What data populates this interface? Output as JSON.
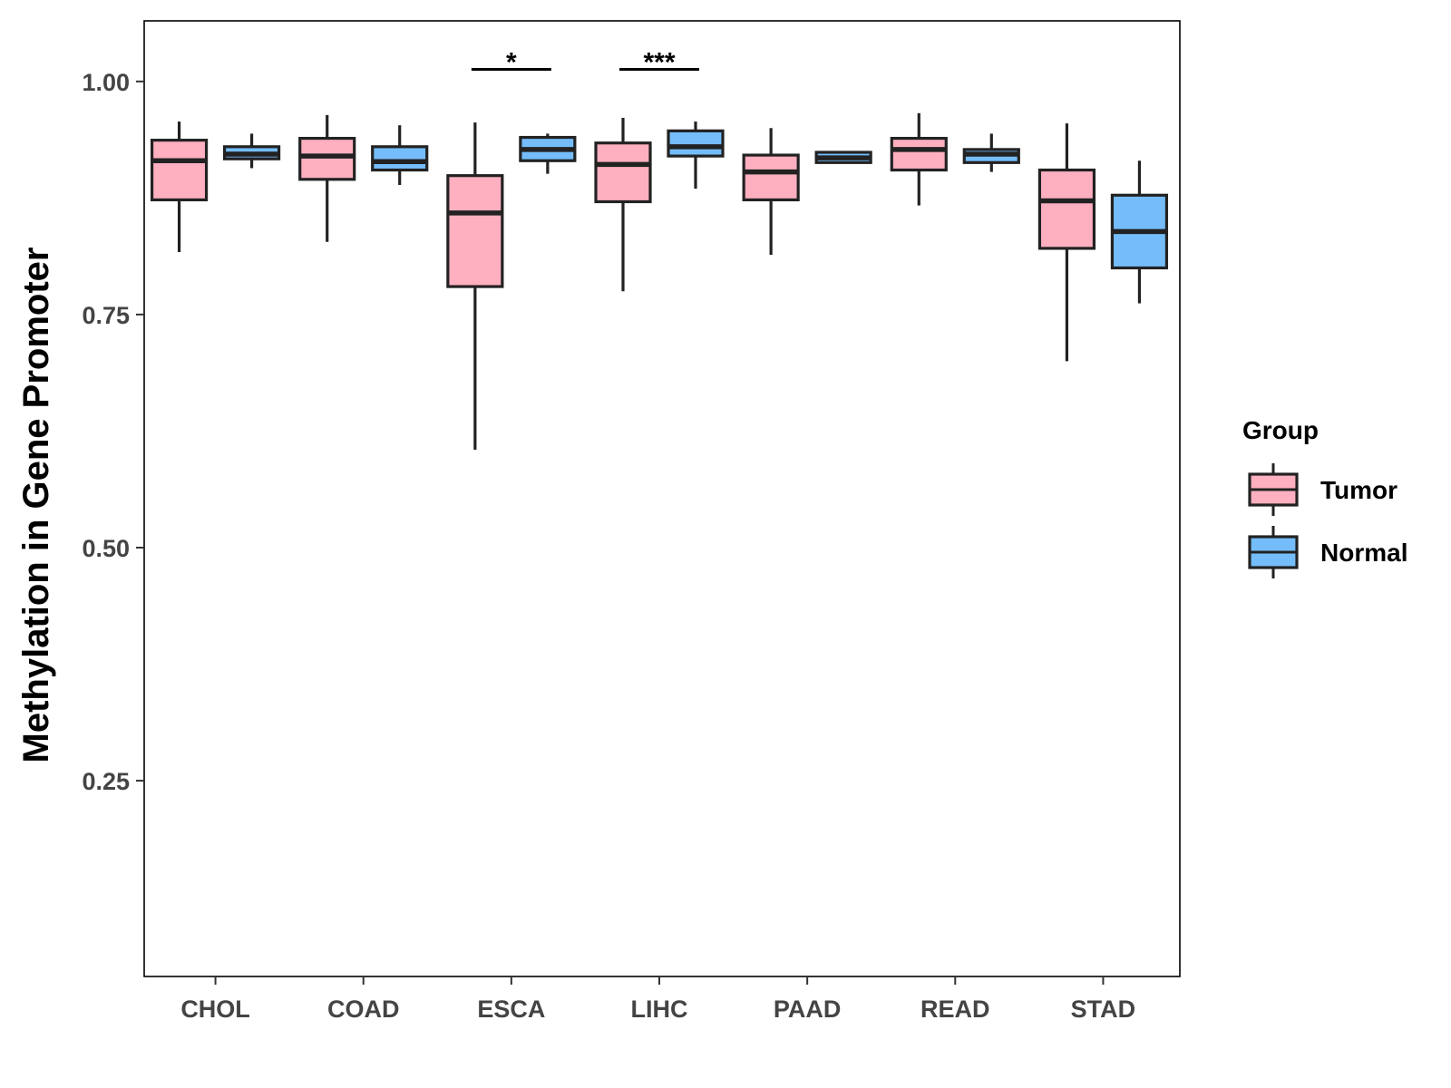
{
  "chart_data": {
    "type": "boxplot",
    "title": "",
    "xlabel": "",
    "ylabel": "Methylation in Gene Promoter",
    "ylim": [
      0.04,
      1.065
    ],
    "yticks": [
      0.25,
      0.5,
      0.75,
      1.0
    ],
    "ytick_labels": [
      "0.25",
      "0.50",
      "0.75",
      "1.00"
    ],
    "categories": [
      "CHOL",
      "COAD",
      "ESCA",
      "LIHC",
      "PAAD",
      "READ",
      "STAD"
    ],
    "legend": {
      "title": "Group",
      "position": "right",
      "entries": [
        {
          "name": "Tumor",
          "color": "#ffb0c0"
        },
        {
          "name": "Normal",
          "color": "#74bdfa"
        }
      ]
    },
    "series": [
      {
        "name": "Tumor",
        "color": "#ffb0c0",
        "boxes": [
          {
            "category": "CHOL",
            "min": 0.817,
            "q1": 0.873,
            "median": 0.915,
            "q3": 0.937,
            "max": 0.957
          },
          {
            "category": "COAD",
            "min": 0.828,
            "q1": 0.895,
            "median": 0.92,
            "q3": 0.939,
            "max": 0.964
          },
          {
            "category": "ESCA",
            "min": 0.605,
            "q1": 0.78,
            "median": 0.859,
            "q3": 0.899,
            "max": 0.956
          },
          {
            "category": "LIHC",
            "min": 0.775,
            "q1": 0.871,
            "median": 0.911,
            "q3": 0.934,
            "max": 0.961
          },
          {
            "category": "PAAD",
            "min": 0.814,
            "q1": 0.873,
            "median": 0.903,
            "q3": 0.921,
            "max": 0.95
          },
          {
            "category": "READ",
            "min": 0.867,
            "q1": 0.905,
            "median": 0.927,
            "q3": 0.939,
            "max": 0.966
          },
          {
            "category": "STAD",
            "min": 0.7,
            "q1": 0.821,
            "median": 0.872,
            "q3": 0.905,
            "max": 0.955
          }
        ]
      },
      {
        "name": "Normal",
        "color": "#74bdfa",
        "boxes": [
          {
            "category": "CHOL",
            "min": 0.907,
            "q1": 0.917,
            "median": 0.922,
            "q3": 0.93,
            "max": 0.944
          },
          {
            "category": "COAD",
            "min": 0.889,
            "q1": 0.905,
            "median": 0.914,
            "q3": 0.93,
            "max": 0.953
          },
          {
            "category": "ESCA",
            "min": 0.901,
            "q1": 0.915,
            "median": 0.927,
            "q3": 0.94,
            "max": 0.944
          },
          {
            "category": "LIHC",
            "min": 0.885,
            "q1": 0.92,
            "median": 0.93,
            "q3": 0.947,
            "max": 0.957
          },
          {
            "category": "PAAD",
            "min": 0.913,
            "q1": 0.913,
            "median": 0.918,
            "q3": 0.924,
            "max": 0.924
          },
          {
            "category": "READ",
            "min": 0.903,
            "q1": 0.913,
            "median": 0.922,
            "q3": 0.927,
            "max": 0.944
          },
          {
            "category": "STAD",
            "min": 0.762,
            "q1": 0.8,
            "median": 0.839,
            "q3": 0.878,
            "max": 0.915
          }
        ]
      }
    ],
    "annotations": [
      {
        "category": "ESCA",
        "label": "*",
        "y": 1.013
      },
      {
        "category": "LIHC",
        "label": "***",
        "y": 1.013
      }
    ],
    "grid": false
  }
}
